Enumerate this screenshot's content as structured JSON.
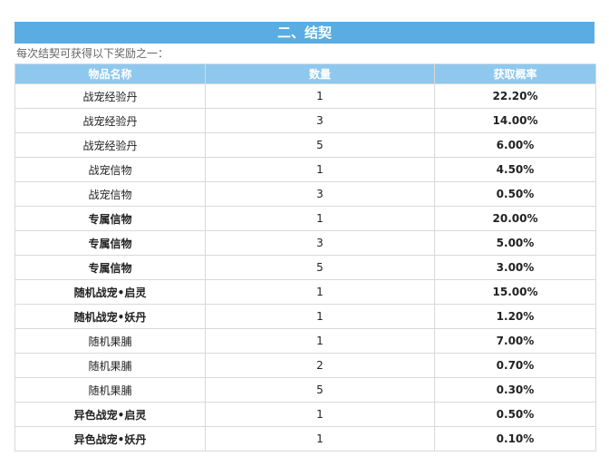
{
  "header": {
    "title": "二、结契",
    "subtitle": "每次结契可获得以下奖励之一："
  },
  "table": {
    "columns": [
      "物品名称",
      "数量",
      "获取概率"
    ],
    "rows": [
      [
        "战宠经验丹",
        "1",
        "22.20%"
      ],
      [
        "战宠经验丹",
        "3",
        "14.00%"
      ],
      [
        "战宠经验丹",
        "5",
        "6.00%"
      ],
      [
        "战宠信物",
        "1",
        "4.50%"
      ],
      [
        "战宠信物",
        "3",
        "0.50%"
      ],
      [
        "专属信物",
        "1",
        "20.00%"
      ],
      [
        "专属信物",
        "3",
        "5.00%"
      ],
      [
        "专属信物",
        "5",
        "3.00%"
      ],
      [
        "随机战宠•启灵",
        "1",
        "15.00%"
      ],
      [
        "随机战宠•妖丹",
        "1",
        "1.20%"
      ],
      [
        "随机果脯",
        "1",
        "7.00%"
      ],
      [
        "随机果脯",
        "2",
        "0.70%"
      ],
      [
        "随机果脯",
        "5",
        "0.30%"
      ],
      [
        "异色战宠•启灵",
        "1",
        "0.50%"
      ],
      [
        "异色战宠•妖丹",
        "1",
        "0.10%"
      ]
    ]
  }
}
